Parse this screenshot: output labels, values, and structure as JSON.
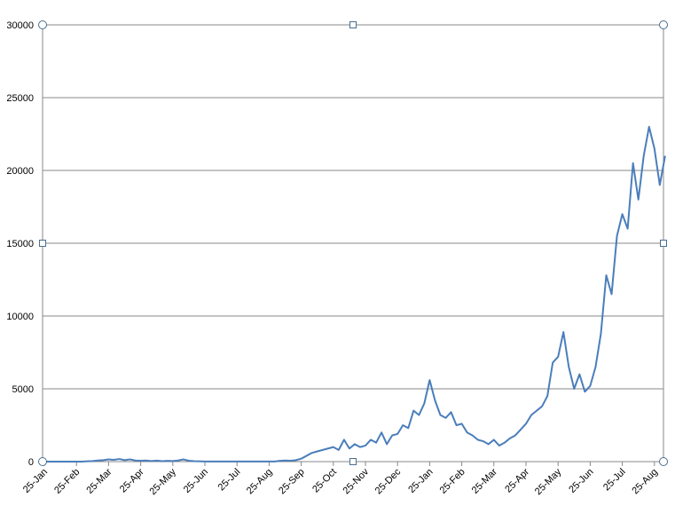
{
  "chart_data": {
    "type": "line",
    "categories": [
      "25-Jan",
      null,
      null,
      null,
      null,
      null,
      "25-Feb",
      null,
      null,
      null,
      null,
      null,
      "25-Mar",
      null,
      null,
      null,
      null,
      null,
      "25-Apr",
      null,
      null,
      null,
      null,
      null,
      "25-May",
      null,
      null,
      null,
      null,
      null,
      "25-Jun",
      null,
      null,
      null,
      null,
      null,
      "25-Jul",
      null,
      null,
      null,
      null,
      null,
      "25-Aug",
      null,
      null,
      null,
      null,
      null,
      "25-Sep",
      null,
      null,
      null,
      null,
      null,
      "25-Oct",
      null,
      null,
      null,
      null,
      null,
      "25-Nov",
      null,
      null,
      null,
      null,
      null,
      "25-Dec",
      null,
      null,
      null,
      null,
      null,
      "25-Jan",
      null,
      null,
      null,
      null,
      null,
      "25-Feb",
      null,
      null,
      null,
      null,
      null,
      "25-Mar",
      null,
      null,
      null,
      null,
      null,
      "25-Apr",
      null,
      null,
      null,
      null,
      null,
      "25-May",
      null,
      null,
      null,
      null,
      null,
      "25-Jun",
      null,
      null,
      null,
      null,
      null,
      "25-Jul",
      null,
      null,
      null,
      null,
      null,
      "25-Aug",
      null,
      null
    ],
    "values": [
      0,
      0,
      0,
      0,
      0,
      0,
      0,
      0,
      20,
      40,
      80,
      100,
      150,
      120,
      180,
      100,
      150,
      80,
      60,
      80,
      40,
      70,
      30,
      50,
      40,
      80,
      150,
      60,
      30,
      20,
      10,
      10,
      5,
      5,
      5,
      5,
      5,
      5,
      5,
      5,
      5,
      5,
      5,
      10,
      50,
      80,
      60,
      100,
      200,
      400,
      600,
      700,
      800,
      900,
      1000,
      800,
      1500,
      900,
      1200,
      1000,
      1100,
      1500,
      1300,
      2000,
      1200,
      1800,
      1900,
      2500,
      2300,
      3500,
      3200,
      4000,
      5600,
      4200,
      3200,
      3000,
      3400,
      2500,
      2600,
      2000,
      1800,
      1500,
      1400,
      1200,
      1500,
      1100,
      1300,
      1600,
      1800,
      2200,
      2600,
      3200,
      3500,
      3800,
      4500,
      6800,
      7200,
      8900,
      6500,
      5000,
      6000,
      4800,
      5200,
      6500,
      8800,
      12800,
      11500,
      15500,
      17000,
      16000,
      20500,
      18000,
      21000,
      23000,
      21500,
      19000,
      21000
    ],
    "color": "#4a7ebb",
    "ylim": [
      0,
      30000
    ],
    "yticks": [
      0,
      5000,
      10000,
      15000,
      20000,
      25000,
      30000
    ],
    "grid": true
  }
}
